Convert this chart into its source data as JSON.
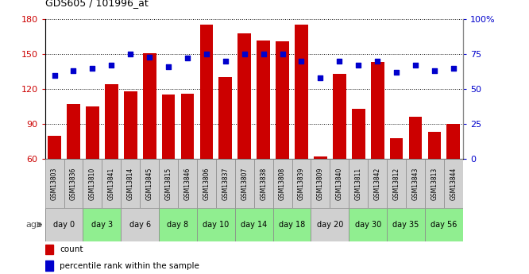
{
  "title": "GDS605 / 101996_at",
  "gsm_labels": [
    "GSM13803",
    "GSM13836",
    "GSM13810",
    "GSM13841",
    "GSM13814",
    "GSM13845",
    "GSM13815",
    "GSM13846",
    "GSM13806",
    "GSM13837",
    "GSM13807",
    "GSM13838",
    "GSM13808",
    "GSM13839",
    "GSM13809",
    "GSM13840",
    "GSM13811",
    "GSM13842",
    "GSM13812",
    "GSM13843",
    "GSM13813",
    "GSM13844"
  ],
  "bar_values": [
    80,
    107,
    105,
    124,
    118,
    151,
    115,
    116,
    175,
    130,
    168,
    162,
    161,
    175,
    62,
    133,
    103,
    143,
    78,
    96,
    83,
    90
  ],
  "dot_values": [
    60,
    63,
    65,
    67,
    75,
    73,
    66,
    72,
    75,
    70,
    75,
    75,
    75,
    70,
    58,
    70,
    67,
    70,
    62,
    67,
    63,
    65
  ],
  "day_groups": [
    {
      "label": "day 0",
      "start": 0,
      "end": 2,
      "color": "#d0d0d0"
    },
    {
      "label": "day 3",
      "start": 2,
      "end": 4,
      "color": "#90ee90"
    },
    {
      "label": "day 6",
      "start": 4,
      "end": 6,
      "color": "#d0d0d0"
    },
    {
      "label": "day 8",
      "start": 6,
      "end": 8,
      "color": "#90ee90"
    },
    {
      "label": "day 10",
      "start": 8,
      "end": 10,
      "color": "#90ee90"
    },
    {
      "label": "day 14",
      "start": 10,
      "end": 12,
      "color": "#90ee90"
    },
    {
      "label": "day 18",
      "start": 12,
      "end": 14,
      "color": "#90ee90"
    },
    {
      "label": "day 20",
      "start": 14,
      "end": 16,
      "color": "#d0d0d0"
    },
    {
      "label": "day 30",
      "start": 16,
      "end": 18,
      "color": "#90ee90"
    },
    {
      "label": "day 35",
      "start": 18,
      "end": 20,
      "color": "#90ee90"
    },
    {
      "label": "day 56",
      "start": 20,
      "end": 22,
      "color": "#90ee90"
    }
  ],
  "bar_color": "#cc0000",
  "dot_color": "#0000cc",
  "gsm_bg_color": "#d0d0d0",
  "ylim_left": [
    60,
    180
  ],
  "ylim_right": [
    0,
    100
  ],
  "yticks_left": [
    60,
    90,
    120,
    150,
    180
  ],
  "yticks_right": [
    0,
    25,
    50,
    75,
    100
  ],
  "left_tick_color": "#cc0000",
  "right_tick_color": "#0000cc"
}
